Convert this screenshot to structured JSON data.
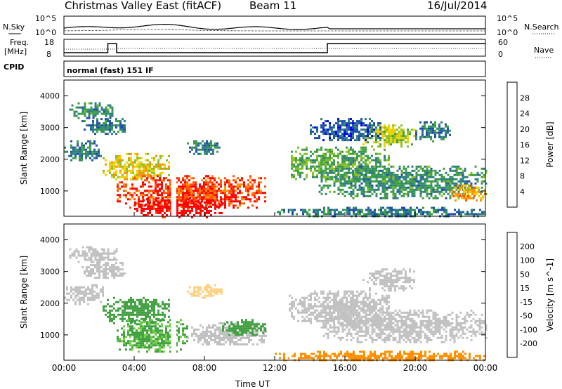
{
  "header": {
    "title": "Christmas Valley East (fitACF)",
    "beam": "Beam 11",
    "date": "16/Jul/2014"
  },
  "top_panels": {
    "nsky_label": "N.Sky",
    "nsearch_label": "N.Search",
    "noise_ticks_left": [
      "10^5",
      "10^0"
    ],
    "noise_ticks_right": [
      "10^5",
      "10^0"
    ],
    "freq_label_line1": "Freq.",
    "freq_label_line2": "[MHz]",
    "freq_ticks": [
      "18",
      "8"
    ],
    "nave_label": "Nave",
    "nave_ticks": [
      "60",
      "0"
    ],
    "cpid_label": "CPID",
    "cpid_text": "normal (fast) 151 IF"
  },
  "colorbars": {
    "power": {
      "label": "Power [dB]",
      "ticks": [
        "28",
        "24",
        "20",
        "16",
        "12",
        "8",
        "4"
      ],
      "colors": [
        "#0000ff",
        "#1f4fa8",
        "#2f7f7f",
        "#3aa040",
        "#88c020",
        "#f0d000",
        "#ff9000",
        "#ff5000",
        "#ff0000"
      ]
    },
    "velocity": {
      "label": "Velocity [m s^-1]",
      "ticks": [
        "200",
        "100",
        "50",
        "15",
        "-15",
        "-50",
        "-100",
        "-200"
      ],
      "colors": [
        "#1030b0",
        "#2050b0",
        "#206860",
        "#40a040",
        "#70d040",
        "#c0c0c0",
        "#ffd080",
        "#ff9000",
        "#ff5000",
        "#ff0000"
      ]
    }
  },
  "chart_data": [
    {
      "type": "heatmap",
      "title": "Power",
      "xlabel": "Time UT",
      "ylabel": "Slant Range [km]",
      "x_ticks": [
        "00:00",
        "04:00",
        "08:00",
        "12:00",
        "16:00",
        "20:00",
        "00:00"
      ],
      "y_ticks": [
        1000,
        2000,
        3000,
        4000
      ],
      "xlim": [
        0,
        24
      ],
      "ylim": [
        200,
        4500
      ],
      "blobs": [
        {
          "t": [
            0.0,
            2.2
          ],
          "r": [
            2000,
            2600
          ],
          "v": 8
        },
        {
          "t": [
            0.3,
            3.0
          ],
          "r": [
            3300,
            3800
          ],
          "v": 10
        },
        {
          "t": [
            1.0,
            3.5
          ],
          "r": [
            2800,
            3300
          ],
          "v": 8
        },
        {
          "t": [
            2.2,
            6.0
          ],
          "r": [
            1400,
            2200
          ],
          "v": 18
        },
        {
          "t": [
            3.0,
            11.5
          ],
          "r": [
            500,
            1500
          ],
          "v": 26
        },
        {
          "t": [
            4.0,
            9.0
          ],
          "r": [
            200,
            800
          ],
          "v": 30
        },
        {
          "t": [
            7.0,
            9.0
          ],
          "r": [
            2200,
            2600
          ],
          "v": 8
        },
        {
          "t": [
            12.8,
            18.5
          ],
          "r": [
            1400,
            2400
          ],
          "v": 12
        },
        {
          "t": [
            14.5,
            24.0
          ],
          "r": [
            800,
            1800
          ],
          "v": 10
        },
        {
          "t": [
            17.0,
            20.0
          ],
          "r": [
            2400,
            3100
          ],
          "v": 16
        },
        {
          "t": [
            22.0,
            24.0
          ],
          "r": [
            700,
            1200
          ],
          "v": 20
        },
        {
          "t": [
            14.0,
            18.0
          ],
          "r": [
            2600,
            3300
          ],
          "v": 6
        },
        {
          "t": [
            20.0,
            22.0
          ],
          "r": [
            2600,
            3200
          ],
          "v": 8
        },
        {
          "t": [
            12.0,
            24.0
          ],
          "r": [
            200,
            500
          ],
          "v": 8
        }
      ]
    },
    {
      "type": "heatmap",
      "title": "Velocity",
      "xlabel": "Time UT",
      "ylabel": "Slant Range [km]",
      "x_ticks": [
        "00:00",
        "04:00",
        "08:00",
        "12:00",
        "16:00",
        "20:00",
        "00:00"
      ],
      "y_ticks": [
        1000,
        2000,
        3000,
        4000
      ],
      "xlim": [
        0,
        24
      ],
      "ylim": [
        200,
        4500
      ],
      "blobs": [
        {
          "t": [
            0.0,
            2.2
          ],
          "r": [
            2000,
            2600
          ],
          "v": 0
        },
        {
          "t": [
            0.3,
            3.0
          ],
          "r": [
            3300,
            3800
          ],
          "v": 0
        },
        {
          "t": [
            1.0,
            3.5
          ],
          "r": [
            2800,
            3300
          ],
          "v": 0
        },
        {
          "t": [
            2.2,
            6.0
          ],
          "r": [
            1400,
            2200
          ],
          "v": 30
        },
        {
          "t": [
            3.0,
            7.0
          ],
          "r": [
            500,
            1500
          ],
          "v": 25
        },
        {
          "t": [
            7.0,
            11.5
          ],
          "r": [
            700,
            1400
          ],
          "v": 0
        },
        {
          "t": [
            9.0,
            11.5
          ],
          "r": [
            1000,
            1500
          ],
          "v": 30
        },
        {
          "t": [
            7.0,
            9.0
          ],
          "r": [
            2200,
            2600
          ],
          "v": -40
        },
        {
          "t": [
            12.8,
            18.5
          ],
          "r": [
            1400,
            2400
          ],
          "v": 0
        },
        {
          "t": [
            14.5,
            24.0
          ],
          "r": [
            800,
            1800
          ],
          "v": 0
        },
        {
          "t": [
            17.0,
            20.0
          ],
          "r": [
            2400,
            3100
          ],
          "v": 0
        },
        {
          "t": [
            12.0,
            24.0
          ],
          "r": [
            200,
            500
          ],
          "v": -60
        }
      ]
    }
  ]
}
